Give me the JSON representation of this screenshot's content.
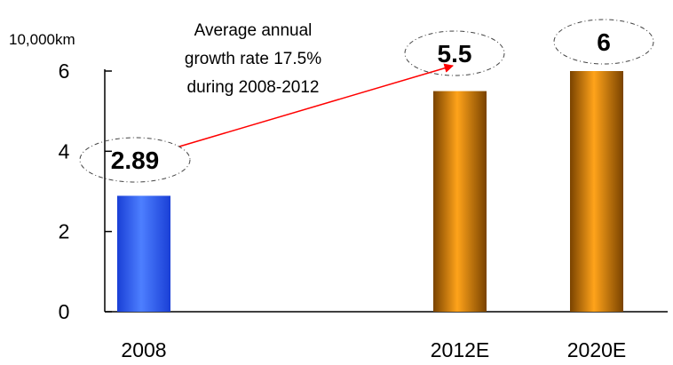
{
  "chart_data": {
    "type": "bar",
    "categories": [
      "2008",
      "2012E",
      "2020E"
    ],
    "values": [
      2.89,
      5.5,
      6
    ],
    "value_labels": [
      "2.89",
      "5.5",
      "6"
    ],
    "y_unit": "10,000km",
    "ylim": [
      0,
      6
    ],
    "yticks": [
      "0",
      "2",
      "4",
      "6"
    ],
    "grid": false,
    "bar_colors": [
      "#3366ff",
      "#ee8800",
      "#ee8800"
    ],
    "annotation": {
      "lines": [
        "Average annual",
        "growth rate 17.5%",
        "during 2008-2012"
      ],
      "arrow_color": "#ff0000",
      "from": "2008",
      "to": "2012E"
    }
  }
}
